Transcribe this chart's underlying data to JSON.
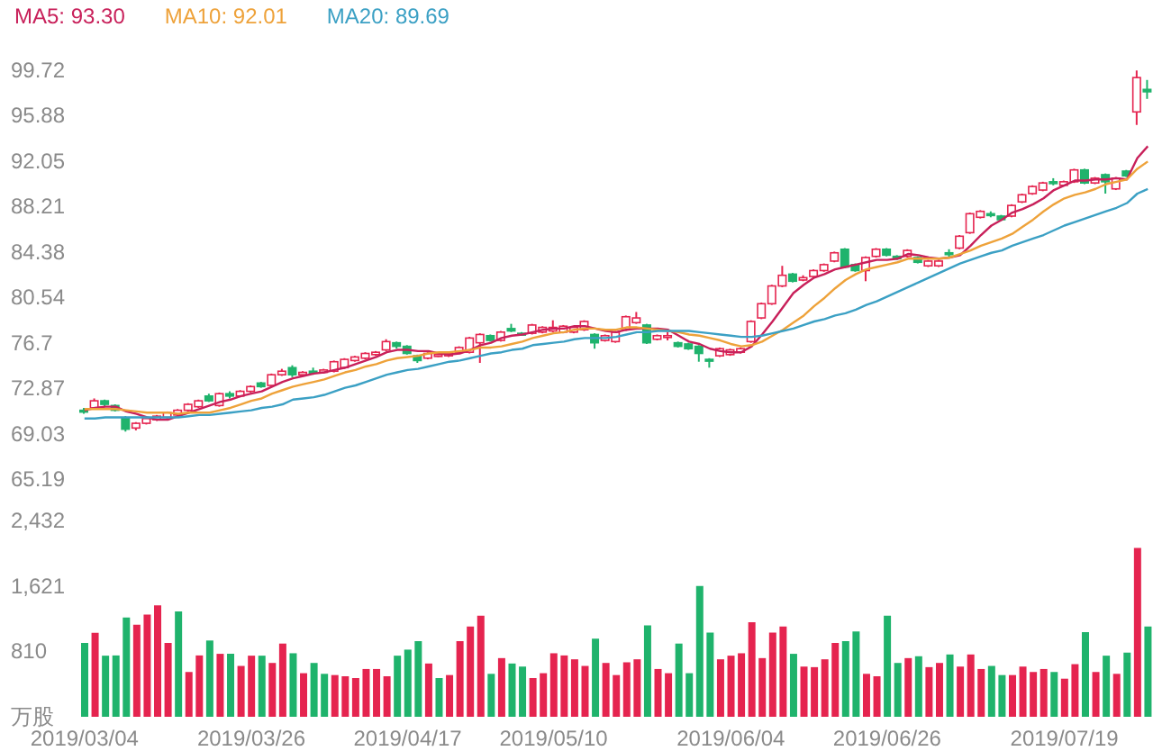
{
  "chart_data": [
    {
      "type": "candlestick",
      "legend": "top left",
      "tick_labels": "y",
      "categories": [
        "2019/03/04",
        null,
        null,
        null,
        null,
        null,
        null,
        null,
        null,
        null,
        null,
        null,
        null,
        null,
        null,
        null,
        "2019/03/26",
        null,
        null,
        null,
        null,
        null,
        null,
        null,
        null,
        null,
        null,
        null,
        null,
        null,
        null,
        "2019/04/17",
        null,
        null,
        null,
        null,
        null,
        null,
        null,
        null,
        null,
        null,
        null,
        null,
        null,
        "2019/05/10",
        null,
        null,
        null,
        null,
        null,
        null,
        null,
        null,
        null,
        null,
        null,
        null,
        null,
        null,
        null,
        null,
        "2019/06/04",
        null,
        null,
        null,
        null,
        null,
        null,
        null,
        null,
        null,
        null,
        null,
        null,
        null,
        null,
        "2019/06/26",
        null,
        null,
        null,
        null,
        null,
        null,
        null,
        null,
        null,
        null,
        null,
        null,
        null,
        null,
        null,
        null,
        "2019/07/19",
        null,
        null,
        null,
        null,
        null,
        null,
        null,
        null
      ],
      "ohlc": [
        [
          71.0,
          71.2,
          70.7,
          70.9
        ],
        [
          71.2,
          72.0,
          71.1,
          71.8
        ],
        [
          71.8,
          71.9,
          71.3,
          71.5
        ],
        [
          71.4,
          71.5,
          70.9,
          71.0
        ],
        [
          70.3,
          70.5,
          69.2,
          69.4
        ],
        [
          69.5,
          70.0,
          69.3,
          69.9
        ],
        [
          69.9,
          70.4,
          69.8,
          70.3
        ],
        [
          70.2,
          70.6,
          70.1,
          70.5
        ],
        [
          70.4,
          70.9,
          70.3,
          70.8
        ],
        [
          70.6,
          71.1,
          70.5,
          71.0
        ],
        [
          71.0,
          71.6,
          70.9,
          71.5
        ],
        [
          71.3,
          71.9,
          71.2,
          71.8
        ],
        [
          72.2,
          72.4,
          71.7,
          71.8
        ],
        [
          71.4,
          72.5,
          71.3,
          72.4
        ],
        [
          72.4,
          72.6,
          72.0,
          72.2
        ],
        [
          72.2,
          72.7,
          72.1,
          72.6
        ],
        [
          72.6,
          73.1,
          72.5,
          73.0
        ],
        [
          73.3,
          73.4,
          72.9,
          73.0
        ],
        [
          73.1,
          74.1,
          73.0,
          74.0
        ],
        [
          74.0,
          74.5,
          73.9,
          74.3
        ],
        [
          74.6,
          74.8,
          73.8,
          74.0
        ],
        [
          74.0,
          74.3,
          73.9,
          74.2
        ],
        [
          74.3,
          74.6,
          74.0,
          74.2
        ],
        [
          74.2,
          74.5,
          74.1,
          74.4
        ],
        [
          74.3,
          75.2,
          74.2,
          75.1
        ],
        [
          74.6,
          75.4,
          74.5,
          75.3
        ],
        [
          75.2,
          75.6,
          75.1,
          75.5
        ],
        [
          75.4,
          75.9,
          75.3,
          75.8
        ],
        [
          75.7,
          76.0,
          75.6,
          75.9
        ],
        [
          76.1,
          77.0,
          76.0,
          76.8
        ],
        [
          76.7,
          76.8,
          76.2,
          76.4
        ],
        [
          76.4,
          76.5,
          75.7,
          75.8
        ],
        [
          75.6,
          75.7,
          75.0,
          75.2
        ],
        [
          75.4,
          75.9,
          75.3,
          75.8
        ],
        [
          75.6,
          75.8,
          75.5,
          75.7
        ],
        [
          75.6,
          75.9,
          75.5,
          75.8
        ],
        [
          75.9,
          76.4,
          75.8,
          76.3
        ],
        [
          75.9,
          77.2,
          75.8,
          77.1
        ],
        [
          76.7,
          77.5,
          75.0,
          77.4
        ],
        [
          77.3,
          77.4,
          76.8,
          76.9
        ],
        [
          76.9,
          77.7,
          76.8,
          77.6
        ],
        [
          77.9,
          78.3,
          77.6,
          77.7
        ],
        [
          77.5,
          77.6,
          77.3,
          77.4
        ],
        [
          77.5,
          78.3,
          77.4,
          78.2
        ],
        [
          77.6,
          78.1,
          77.5,
          78.0
        ],
        [
          77.7,
          78.6,
          77.6,
          78.0
        ],
        [
          77.6,
          78.2,
          77.5,
          78.1
        ],
        [
          77.6,
          78.1,
          77.5,
          78.0
        ],
        [
          77.8,
          78.6,
          77.7,
          78.5
        ],
        [
          77.4,
          77.5,
          76.2,
          76.7
        ],
        [
          76.9,
          77.4,
          76.8,
          77.3
        ],
        [
          76.8,
          77.7,
          76.7,
          77.6
        ],
        [
          77.8,
          79.0,
          77.7,
          78.9
        ],
        [
          78.4,
          79.3,
          78.3,
          78.8
        ],
        [
          78.2,
          78.3,
          76.6,
          76.7
        ],
        [
          77.0,
          77.4,
          76.9,
          77.3
        ],
        [
          77.2,
          77.6,
          76.9,
          77.3
        ],
        [
          76.7,
          76.8,
          76.3,
          76.4
        ],
        [
          76.6,
          76.7,
          76.1,
          76.2
        ],
        [
          76.4,
          76.5,
          75.1,
          75.8
        ],
        [
          75.3,
          75.4,
          74.6,
          75.2
        ],
        [
          75.6,
          76.3,
          75.5,
          76.2
        ],
        [
          75.7,
          76.2,
          75.6,
          76.1
        ],
        [
          75.9,
          76.3,
          75.8,
          76.2
        ],
        [
          76.8,
          78.6,
          76.7,
          78.5
        ],
        [
          78.8,
          80.1,
          78.7,
          80.0
        ],
        [
          80.0,
          81.6,
          79.9,
          81.5
        ],
        [
          81.5,
          83.2,
          81.4,
          82.4
        ],
        [
          82.5,
          82.6,
          81.8,
          81.9
        ],
        [
          82.0,
          82.4,
          81.9,
          82.2
        ],
        [
          82.3,
          82.9,
          82.2,
          82.8
        ],
        [
          82.8,
          83.4,
          82.7,
          83.3
        ],
        [
          83.6,
          84.4,
          83.5,
          84.3
        ],
        [
          84.6,
          84.7,
          83.0,
          83.1
        ],
        [
          83.3,
          83.4,
          82.7,
          82.8
        ],
        [
          82.8,
          84.0,
          81.9,
          83.9
        ],
        [
          84.0,
          84.7,
          83.9,
          84.6
        ],
        [
          84.6,
          84.7,
          84.0,
          84.1
        ],
        [
          84.0,
          84.1,
          83.7,
          83.8
        ],
        [
          84.0,
          84.6,
          83.9,
          84.5
        ],
        [
          83.9,
          84.0,
          83.4,
          83.5
        ],
        [
          83.2,
          83.7,
          83.1,
          83.6
        ],
        [
          83.2,
          83.7,
          83.1,
          83.6
        ],
        [
          84.3,
          84.6,
          83.9,
          84.2
        ],
        [
          84.7,
          85.8,
          84.6,
          85.7
        ],
        [
          86.0,
          87.7,
          85.9,
          87.6
        ],
        [
          87.3,
          87.9,
          87.2,
          87.8
        ],
        [
          87.6,
          87.8,
          87.3,
          87.5
        ],
        [
          87.4,
          87.5,
          87.0,
          87.1
        ],
        [
          87.4,
          88.4,
          87.3,
          88.3
        ],
        [
          88.6,
          89.3,
          88.5,
          89.2
        ],
        [
          89.3,
          90.0,
          89.2,
          89.9
        ],
        [
          89.6,
          90.3,
          89.5,
          90.2
        ],
        [
          90.3,
          90.6,
          90.0,
          90.2
        ],
        [
          90.0,
          90.4,
          89.9,
          90.3
        ],
        [
          90.3,
          91.4,
          90.2,
          91.3
        ],
        [
          91.3,
          91.4,
          90.1,
          90.2
        ],
        [
          90.2,
          90.7,
          90.1,
          90.6
        ],
        [
          90.9,
          91.0,
          89.3,
          90.3
        ],
        [
          89.7,
          90.7,
          89.6,
          90.6
        ],
        [
          91.2,
          91.3,
          90.7,
          90.8
        ],
        [
          96.2,
          99.7,
          95.1,
          99.1
        ],
        [
          98.1,
          98.9,
          97.3,
          97.9
        ]
      ],
      "colors": [
        "#1fb36c",
        "#e5244f",
        "#1fb36c",
        "#1fb36c",
        "#1fb36c",
        "#e5244f",
        "#e5244f",
        "#e5244f",
        "#e5244f",
        "#e5244f",
        "#e5244f",
        "#e5244f",
        "#1fb36c",
        "#e5244f",
        "#1fb36c",
        "#e5244f",
        "#e5244f",
        "#1fb36c",
        "#e5244f",
        "#e5244f",
        "#1fb36c",
        "#e5244f",
        "#1fb36c",
        "#e5244f",
        "#e5244f",
        "#e5244f",
        "#e5244f",
        "#e5244f",
        "#e5244f",
        "#e5244f",
        "#1fb36c",
        "#1fb36c",
        "#1fb36c",
        "#e5244f",
        "#e5244f",
        "#e5244f",
        "#e5244f",
        "#e5244f",
        "#e5244f",
        "#1fb36c",
        "#e5244f",
        "#1fb36c",
        "#1fb36c",
        "#e5244f",
        "#e5244f",
        "#e5244f",
        "#e5244f",
        "#e5244f",
        "#e5244f",
        "#1fb36c",
        "#e5244f",
        "#e5244f",
        "#e5244f",
        "#e5244f",
        "#1fb36c",
        "#e5244f",
        "#e5244f",
        "#1fb36c",
        "#1fb36c",
        "#1fb36c",
        "#1fb36c",
        "#e5244f",
        "#e5244f",
        "#e5244f",
        "#e5244f",
        "#e5244f",
        "#e5244f",
        "#e5244f",
        "#1fb36c",
        "#e5244f",
        "#e5244f",
        "#e5244f",
        "#e5244f",
        "#1fb36c",
        "#1fb36c",
        "#e5244f",
        "#e5244f",
        "#1fb36c",
        "#1fb36c",
        "#e5244f",
        "#1fb36c",
        "#e5244f",
        "#e5244f",
        "#1fb36c",
        "#e5244f",
        "#e5244f",
        "#e5244f",
        "#1fb36c",
        "#1fb36c",
        "#e5244f",
        "#e5244f",
        "#e5244f",
        "#e5244f",
        "#1fb36c",
        "#e5244f",
        "#e5244f",
        "#1fb36c",
        "#e5244f",
        "#1fb36c",
        "#e5244f",
        "#1fb36c",
        "#e5244f",
        "#1fb36c"
      ],
      "series": [
        {
          "type": "line",
          "name": "MA5: 93.30",
          "color": "#c8205a",
          "values": [
            71.0,
            71.2,
            71.3,
            71.3,
            70.9,
            70.7,
            70.4,
            70.2,
            70.2,
            70.5,
            70.8,
            71.1,
            71.4,
            71.7,
            71.9,
            72.2,
            72.4,
            72.6,
            73.0,
            73.4,
            73.7,
            73.9,
            74.1,
            74.2,
            74.4,
            74.6,
            74.9,
            75.2,
            75.5,
            75.9,
            76.1,
            76.1,
            76.0,
            76.0,
            75.8,
            75.7,
            75.8,
            76.1,
            76.5,
            76.7,
            77.1,
            77.3,
            77.4,
            77.6,
            77.8,
            77.9,
            77.9,
            78.1,
            78.1,
            77.9,
            77.7,
            77.6,
            77.8,
            77.9,
            77.9,
            77.9,
            77.8,
            77.3,
            76.8,
            76.6,
            76.2,
            76.0,
            75.9,
            75.9,
            76.4,
            77.4,
            78.5,
            79.7,
            80.9,
            81.6,
            82.2,
            82.5,
            82.9,
            83.1,
            83.3,
            83.5,
            83.7,
            83.7,
            83.8,
            84.2,
            84.1,
            83.9,
            83.8,
            83.9,
            84.1,
            84.9,
            85.8,
            86.6,
            87.1,
            87.7,
            88.0,
            88.4,
            88.9,
            89.6,
            90.0,
            90.4,
            90.4,
            90.5,
            90.5,
            90.6,
            90.5,
            92.3,
            93.3
          ]
        },
        {
          "type": "line",
          "name": "MA10: 92.01",
          "color": "#eea23a",
          "values": [
            71.1,
            71.1,
            71.1,
            71.1,
            71.0,
            70.9,
            70.8,
            70.8,
            70.8,
            70.7,
            70.8,
            70.8,
            70.8,
            71.0,
            71.2,
            71.5,
            71.8,
            72.0,
            72.4,
            72.7,
            73.0,
            73.2,
            73.4,
            73.6,
            73.9,
            74.2,
            74.4,
            74.7,
            74.9,
            75.2,
            75.4,
            75.5,
            75.6,
            75.8,
            75.9,
            75.9,
            76.0,
            76.1,
            76.3,
            76.3,
            76.4,
            76.6,
            76.8,
            77.1,
            77.3,
            77.5,
            77.6,
            77.8,
            77.9,
            77.9,
            77.8,
            77.8,
            78.0,
            78.0,
            77.9,
            77.8,
            77.7,
            77.6,
            77.4,
            77.3,
            77.1,
            76.9,
            76.6,
            76.4,
            76.5,
            76.8,
            77.3,
            77.8,
            78.4,
            79.0,
            79.8,
            80.5,
            81.3,
            82.0,
            82.5,
            82.9,
            83.1,
            83.3,
            83.5,
            83.8,
            83.8,
            83.8,
            83.8,
            83.9,
            84.2,
            84.5,
            84.9,
            85.2,
            85.5,
            85.9,
            86.5,
            87.1,
            87.8,
            88.4,
            88.9,
            89.2,
            89.4,
            89.7,
            90.1,
            90.3,
            90.5,
            91.4,
            92.01
          ]
        },
        {
          "type": "line",
          "name": "MA20: 89.69",
          "color": "#3ba0c4",
          "values": [
            70.3,
            70.3,
            70.4,
            70.4,
            70.4,
            70.4,
            70.4,
            70.4,
            70.4,
            70.4,
            70.5,
            70.6,
            70.6,
            70.7,
            70.8,
            70.9,
            71.0,
            71.2,
            71.3,
            71.5,
            71.9,
            72.0,
            72.1,
            72.3,
            72.6,
            72.9,
            73.1,
            73.4,
            73.7,
            74.0,
            74.2,
            74.4,
            74.5,
            74.7,
            74.9,
            75.1,
            75.2,
            75.4,
            75.6,
            75.8,
            75.9,
            76.1,
            76.2,
            76.5,
            76.6,
            76.7,
            76.8,
            77.0,
            77.1,
            77.1,
            77.1,
            77.2,
            77.4,
            77.6,
            77.6,
            77.7,
            77.7,
            77.7,
            77.7,
            77.6,
            77.5,
            77.4,
            77.3,
            77.2,
            77.2,
            77.3,
            77.5,
            77.7,
            77.9,
            78.2,
            78.5,
            78.7,
            79.0,
            79.2,
            79.5,
            79.9,
            80.2,
            80.6,
            81.0,
            81.4,
            81.8,
            82.2,
            82.6,
            83.0,
            83.4,
            83.7,
            84.0,
            84.3,
            84.5,
            84.9,
            85.2,
            85.5,
            85.8,
            86.2,
            86.6,
            86.9,
            87.2,
            87.5,
            87.8,
            88.1,
            88.5,
            89.3,
            89.69
          ]
        }
      ],
      "ylim": [
        65.19,
        99.72
      ],
      "yticks": [
        65.19,
        69.03,
        72.87,
        76.7,
        80.54,
        84.38,
        88.21,
        92.05,
        95.88,
        99.72
      ]
    },
    {
      "type": "bar",
      "categories": [
        "2019/03/04",
        null,
        null,
        null,
        null,
        null,
        null,
        null,
        null,
        null,
        null,
        null,
        null,
        null,
        null,
        null,
        "2019/03/26",
        null,
        null,
        null,
        null,
        null,
        null,
        null,
        null,
        null,
        null,
        null,
        null,
        null,
        null,
        "2019/04/17",
        null,
        null,
        null,
        null,
        null,
        null,
        null,
        null,
        null,
        null,
        null,
        null,
        null,
        "2019/05/10",
        null,
        null,
        null,
        null,
        null,
        null,
        null,
        null,
        null,
        null,
        null,
        null,
        null,
        null,
        null,
        null,
        "2019/06/04",
        null,
        null,
        null,
        null,
        null,
        null,
        null,
        null,
        null,
        null,
        null,
        null,
        null,
        null,
        "2019/06/26",
        null,
        null,
        null,
        null,
        null,
        null,
        null,
        null,
        null,
        null,
        null,
        null,
        null,
        null,
        null,
        null,
        "2019/07/19",
        null,
        null,
        null,
        null,
        null,
        null,
        null,
        null
      ],
      "values": [
        915,
        1040,
        757,
        760,
        1230,
        1140,
        1267,
        1380,
        915,
        1305,
        555,
        760,
        945,
        780,
        780,
        630,
        757,
        757,
        667,
        907,
        787,
        540,
        667,
        532,
        517,
        502,
        480,
        592,
        592,
        502,
        757,
        832,
        937,
        660,
        480,
        517,
        937,
        1117,
        1252,
        532,
        727,
        660,
        622,
        480,
        540,
        787,
        760,
        712,
        630,
        967,
        667,
        517,
        675,
        712,
        1132,
        592,
        540,
        907,
        540,
        1620,
        1042,
        712,
        757,
        787,
        1170,
        727,
        1042,
        1117,
        780,
        622,
        615,
        712,
        915,
        937,
        1057,
        532,
        502,
        1252,
        667,
        727,
        750,
        615,
        667,
        772,
        622,
        772,
        592,
        630,
        517,
        517,
        622,
        555,
        592,
        555,
        472,
        652,
        1050,
        555,
        757,
        532,
        795,
        2092,
        1117
      ],
      "colors": [
        "#1fb36c",
        "#e5244f",
        "#1fb36c",
        "#1fb36c",
        "#1fb36c",
        "#e5244f",
        "#e5244f",
        "#e5244f",
        "#e5244f",
        "#1fb36c",
        "#e5244f",
        "#e5244f",
        "#1fb36c",
        "#e5244f",
        "#1fb36c",
        "#e5244f",
        "#e5244f",
        "#1fb36c",
        "#e5244f",
        "#e5244f",
        "#1fb36c",
        "#e5244f",
        "#1fb36c",
        "#1fb36c",
        "#e5244f",
        "#e5244f",
        "#e5244f",
        "#e5244f",
        "#e5244f",
        "#e5244f",
        "#1fb36c",
        "#1fb36c",
        "#1fb36c",
        "#e5244f",
        "#1fb36c",
        "#e5244f",
        "#e5244f",
        "#e5244f",
        "#e5244f",
        "#1fb36c",
        "#e5244f",
        "#1fb36c",
        "#1fb36c",
        "#e5244f",
        "#e5244f",
        "#e5244f",
        "#e5244f",
        "#e5244f",
        "#e5244f",
        "#1fb36c",
        "#e5244f",
        "#e5244f",
        "#e5244f",
        "#e5244f",
        "#1fb36c",
        "#e5244f",
        "#e5244f",
        "#1fb36c",
        "#1fb36c",
        "#1fb36c",
        "#1fb36c",
        "#e5244f",
        "#e5244f",
        "#e5244f",
        "#e5244f",
        "#e5244f",
        "#e5244f",
        "#e5244f",
        "#1fb36c",
        "#e5244f",
        "#e5244f",
        "#e5244f",
        "#e5244f",
        "#1fb36c",
        "#1fb36c",
        "#e5244f",
        "#e5244f",
        "#1fb36c",
        "#1fb36c",
        "#e5244f",
        "#1fb36c",
        "#e5244f",
        "#e5244f",
        "#1fb36c",
        "#e5244f",
        "#e5244f",
        "#e5244f",
        "#1fb36c",
        "#1fb36c",
        "#e5244f",
        "#e5244f",
        "#e5244f",
        "#e5244f",
        "#1fb36c",
        "#e5244f",
        "#e5244f",
        "#1fb36c",
        "#e5244f",
        "#1fb36c",
        "#e5244f",
        "#1fb36c",
        "#e5244f",
        "#1fb36c"
      ],
      "ylim": [
        0,
        2432
      ],
      "yticks": [
        {
          "value": 0,
          "label": "万股"
        },
        810,
        {
          "value": 1621,
          "label": "1,621"
        },
        {
          "value": 2432,
          "label": "2,432"
        }
      ]
    }
  ]
}
